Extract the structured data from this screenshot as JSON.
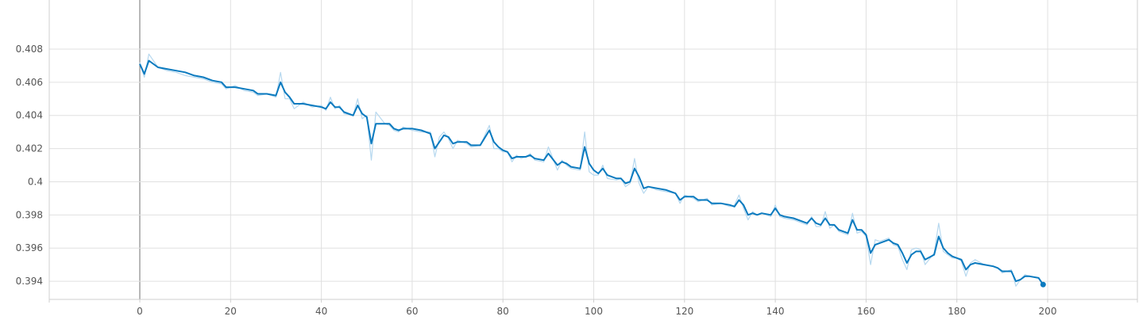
{
  "chart_data": {
    "type": "line",
    "title": "",
    "xlabel": "",
    "ylabel": "",
    "xlim": [
      -20,
      220
    ],
    "ylim": [
      0.3922,
      0.4098
    ],
    "x_ticks": [
      0,
      20,
      40,
      60,
      80,
      100,
      120,
      140,
      160,
      180,
      200
    ],
    "x_tick_labels": [
      "0",
      "20",
      "40",
      "60",
      "80",
      "100",
      "120",
      "140",
      "160",
      "180",
      "200"
    ],
    "y_ticks": [
      0.394,
      0.396,
      0.398,
      0.4,
      0.402,
      0.404,
      0.406,
      0.408
    ],
    "y_tick_labels": [
      "0.394",
      "0.396",
      "0.398",
      "0.4",
      "0.402",
      "0.404",
      "0.406",
      "0.408"
    ],
    "grid": true,
    "colors": {
      "smoothed": "#0a7abf",
      "raw": "#b6d8ef",
      "grid": "#e0e0e0"
    },
    "series": [
      {
        "role": "smoothed",
        "points": [
          [
            0,
            0.4071
          ],
          [
            1,
            0.4065
          ],
          [
            2,
            0.4073
          ],
          [
            4,
            0.4069
          ],
          [
            6,
            0.4068
          ],
          [
            8,
            0.4067
          ],
          [
            10,
            0.4066
          ],
          [
            12,
            0.4064
          ],
          [
            14,
            0.4063
          ],
          [
            16,
            0.4061
          ],
          [
            18,
            0.406
          ],
          [
            19,
            0.4057
          ],
          [
            21,
            0.4057
          ],
          [
            23,
            0.4056
          ],
          [
            25,
            0.4055
          ],
          [
            26,
            0.4053
          ],
          [
            28,
            0.4053
          ],
          [
            30,
            0.4052
          ],
          [
            31,
            0.406
          ],
          [
            32,
            0.4054
          ],
          [
            33,
            0.4051
          ],
          [
            34,
            0.4047
          ],
          [
            36,
            0.4047
          ],
          [
            38,
            0.4046
          ],
          [
            40,
            0.4045
          ],
          [
            41,
            0.4044
          ],
          [
            42,
            0.4048
          ],
          [
            43,
            0.4045
          ],
          [
            44,
            0.4045
          ],
          [
            45,
            0.4042
          ],
          [
            47,
            0.404
          ],
          [
            48,
            0.4046
          ],
          [
            49,
            0.4041
          ],
          [
            50,
            0.4039
          ],
          [
            51,
            0.4023
          ],
          [
            52,
            0.4035
          ],
          [
            54,
            0.4035
          ],
          [
            55,
            0.4035
          ],
          [
            56,
            0.4032
          ],
          [
            57,
            0.4031
          ],
          [
            58,
            0.4032
          ],
          [
            60,
            0.4032
          ],
          [
            62,
            0.4031
          ],
          [
            64,
            0.4029
          ],
          [
            65,
            0.402
          ],
          [
            66,
            0.4024
          ],
          [
            67,
            0.4028
          ],
          [
            68,
            0.4027
          ],
          [
            69,
            0.4023
          ],
          [
            70,
            0.4024
          ],
          [
            72,
            0.4024
          ],
          [
            73,
            0.4022
          ],
          [
            75,
            0.4022
          ],
          [
            77,
            0.4031
          ],
          [
            78,
            0.4024
          ],
          [
            79,
            0.4021
          ],
          [
            80,
            0.4019
          ],
          [
            81,
            0.4018
          ],
          [
            82,
            0.4014
          ],
          [
            83,
            0.4015
          ],
          [
            84,
            0.4015
          ],
          [
            85,
            0.4015
          ],
          [
            86,
            0.4016
          ],
          [
            87,
            0.4014
          ],
          [
            89,
            0.4013
          ],
          [
            90,
            0.4017
          ],
          [
            92,
            0.401
          ],
          [
            93,
            0.4012
          ],
          [
            94,
            0.4011
          ],
          [
            95,
            0.4009
          ],
          [
            97,
            0.4008
          ],
          [
            98,
            0.4021
          ],
          [
            99,
            0.4011
          ],
          [
            100,
            0.4007
          ],
          [
            101,
            0.4005
          ],
          [
            102,
            0.4008
          ],
          [
            103,
            0.4004
          ],
          [
            105,
            0.4002
          ],
          [
            106,
            0.4002
          ],
          [
            107,
            0.3999
          ],
          [
            108,
            0.4
          ],
          [
            109,
            0.4008
          ],
          [
            110,
            0.4003
          ],
          [
            111,
            0.3996
          ],
          [
            112,
            0.3997
          ],
          [
            114,
            0.3996
          ],
          [
            116,
            0.3995
          ],
          [
            118,
            0.3993
          ],
          [
            119,
            0.3989
          ],
          [
            120,
            0.3991
          ],
          [
            122,
            0.3991
          ],
          [
            123,
            0.3989
          ],
          [
            125,
            0.3989
          ],
          [
            126,
            0.3987
          ],
          [
            128,
            0.3987
          ],
          [
            130,
            0.3986
          ],
          [
            131,
            0.3985
          ],
          [
            132,
            0.3989
          ],
          [
            133,
            0.3986
          ],
          [
            134,
            0.398
          ],
          [
            135,
            0.3981
          ],
          [
            136,
            0.398
          ],
          [
            137,
            0.3981
          ],
          [
            139,
            0.398
          ],
          [
            140,
            0.3984
          ],
          [
            141,
            0.398
          ],
          [
            142,
            0.3979
          ],
          [
            144,
            0.3978
          ],
          [
            146,
            0.3976
          ],
          [
            147,
            0.3975
          ],
          [
            148,
            0.3978
          ],
          [
            149,
            0.3975
          ],
          [
            150,
            0.3974
          ],
          [
            151,
            0.3978
          ],
          [
            152,
            0.3974
          ],
          [
            153,
            0.3974
          ],
          [
            154,
            0.3971
          ],
          [
            156,
            0.3969
          ],
          [
            157,
            0.3977
          ],
          [
            158,
            0.3971
          ],
          [
            159,
            0.3971
          ],
          [
            160,
            0.3968
          ],
          [
            161,
            0.3957
          ],
          [
            162,
            0.3962
          ],
          [
            163,
            0.3963
          ],
          [
            164,
            0.3964
          ],
          [
            165,
            0.3965
          ],
          [
            166,
            0.3963
          ],
          [
            167,
            0.3962
          ],
          [
            168,
            0.3957
          ],
          [
            169,
            0.3951
          ],
          [
            170,
            0.3956
          ],
          [
            171,
            0.3958
          ],
          [
            172,
            0.3958
          ],
          [
            173,
            0.3953
          ],
          [
            175,
            0.3956
          ],
          [
            176,
            0.3967
          ],
          [
            177,
            0.396
          ],
          [
            178,
            0.3957
          ],
          [
            179,
            0.3955
          ],
          [
            180,
            0.3954
          ],
          [
            181,
            0.3953
          ],
          [
            182,
            0.3947
          ],
          [
            183,
            0.395
          ],
          [
            184,
            0.3951
          ],
          [
            186,
            0.395
          ],
          [
            188,
            0.3949
          ],
          [
            189,
            0.3948
          ],
          [
            190,
            0.3946
          ],
          [
            192,
            0.3946
          ],
          [
            193,
            0.394
          ],
          [
            194,
            0.3941
          ],
          [
            195,
            0.3943
          ],
          [
            196,
            0.3943
          ],
          [
            198,
            0.3942
          ],
          [
            199,
            0.3938
          ]
        ]
      },
      {
        "role": "raw",
        "points": [
          [
            0,
            0.4072
          ],
          [
            1,
            0.4063
          ],
          [
            2,
            0.4077
          ],
          [
            4,
            0.4069
          ],
          [
            6,
            0.4067
          ],
          [
            8,
            0.4066
          ],
          [
            10,
            0.4064
          ],
          [
            12,
            0.4063
          ],
          [
            14,
            0.4062
          ],
          [
            16,
            0.406
          ],
          [
            18,
            0.4059
          ],
          [
            19,
            0.4056
          ],
          [
            21,
            0.4058
          ],
          [
            23,
            0.4055
          ],
          [
            25,
            0.4054
          ],
          [
            26,
            0.4052
          ],
          [
            28,
            0.4053
          ],
          [
            30,
            0.4051
          ],
          [
            31,
            0.4066
          ],
          [
            32,
            0.405
          ],
          [
            33,
            0.405
          ],
          [
            34,
            0.4044
          ],
          [
            36,
            0.4048
          ],
          [
            38,
            0.4045
          ],
          [
            40,
            0.4046
          ],
          [
            41,
            0.4043
          ],
          [
            42,
            0.4051
          ],
          [
            43,
            0.4044
          ],
          [
            44,
            0.4046
          ],
          [
            45,
            0.4041
          ],
          [
            47,
            0.404
          ],
          [
            48,
            0.405
          ],
          [
            49,
            0.4038
          ],
          [
            50,
            0.404
          ],
          [
            51,
            0.4013
          ],
          [
            52,
            0.4042
          ],
          [
            54,
            0.4035
          ],
          [
            55,
            0.4034
          ],
          [
            56,
            0.4031
          ],
          [
            57,
            0.403
          ],
          [
            58,
            0.4033
          ],
          [
            60,
            0.4031
          ],
          [
            62,
            0.403
          ],
          [
            64,
            0.403
          ],
          [
            65,
            0.4015
          ],
          [
            66,
            0.4027
          ],
          [
            67,
            0.403
          ],
          [
            68,
            0.4026
          ],
          [
            69,
            0.402
          ],
          [
            70,
            0.4025
          ],
          [
            72,
            0.4023
          ],
          [
            73,
            0.4021
          ],
          [
            75,
            0.4022
          ],
          [
            77,
            0.4034
          ],
          [
            78,
            0.402
          ],
          [
            79,
            0.402
          ],
          [
            80,
            0.4018
          ],
          [
            81,
            0.4018
          ],
          [
            82,
            0.4012
          ],
          [
            83,
            0.4016
          ],
          [
            84,
            0.4014
          ],
          [
            85,
            0.4015
          ],
          [
            86,
            0.4017
          ],
          [
            87,
            0.4013
          ],
          [
            89,
            0.4012
          ],
          [
            90,
            0.4021
          ],
          [
            92,
            0.4007
          ],
          [
            93,
            0.4013
          ],
          [
            94,
            0.401
          ],
          [
            95,
            0.4008
          ],
          [
            97,
            0.4007
          ],
          [
            98,
            0.403
          ],
          [
            99,
            0.4006
          ],
          [
            100,
            0.4004
          ],
          [
            101,
            0.4004
          ],
          [
            102,
            0.401
          ],
          [
            103,
            0.4002
          ],
          [
            105,
            0.4001
          ],
          [
            106,
            0.4002
          ],
          [
            107,
            0.3997
          ],
          [
            108,
            0.3999
          ],
          [
            109,
            0.4014
          ],
          [
            110,
            0.3999
          ],
          [
            111,
            0.3993
          ],
          [
            112,
            0.3997
          ],
          [
            114,
            0.3995
          ],
          [
            116,
            0.3994
          ],
          [
            118,
            0.3993
          ],
          [
            119,
            0.3987
          ],
          [
            120,
            0.3992
          ],
          [
            122,
            0.399
          ],
          [
            123,
            0.3988
          ],
          [
            125,
            0.399
          ],
          [
            126,
            0.3986
          ],
          [
            128,
            0.3987
          ],
          [
            130,
            0.3985
          ],
          [
            131,
            0.3986
          ],
          [
            132,
            0.3992
          ],
          [
            133,
            0.3984
          ],
          [
            134,
            0.3977
          ],
          [
            135,
            0.3982
          ],
          [
            136,
            0.398
          ],
          [
            137,
            0.3981
          ],
          [
            139,
            0.3979
          ],
          [
            140,
            0.3986
          ],
          [
            141,
            0.3979
          ],
          [
            142,
            0.3978
          ],
          [
            144,
            0.3977
          ],
          [
            146,
            0.3975
          ],
          [
            147,
            0.3974
          ],
          [
            148,
            0.3979
          ],
          [
            149,
            0.3973
          ],
          [
            150,
            0.3973
          ],
          [
            151,
            0.3982
          ],
          [
            152,
            0.3972
          ],
          [
            153,
            0.3974
          ],
          [
            154,
            0.397
          ],
          [
            156,
            0.3968
          ],
          [
            157,
            0.3981
          ],
          [
            158,
            0.3969
          ],
          [
            159,
            0.397
          ],
          [
            160,
            0.3967
          ],
          [
            161,
            0.395
          ],
          [
            162,
            0.3965
          ],
          [
            163,
            0.3964
          ],
          [
            164,
            0.3965
          ],
          [
            165,
            0.3966
          ],
          [
            166,
            0.3962
          ],
          [
            167,
            0.3961
          ],
          [
            168,
            0.3953
          ],
          [
            169,
            0.3947
          ],
          [
            170,
            0.3959
          ],
          [
            171,
            0.396
          ],
          [
            172,
            0.3959
          ],
          [
            173,
            0.395
          ],
          [
            175,
            0.3957
          ],
          [
            176,
            0.3975
          ],
          [
            177,
            0.3958
          ],
          [
            178,
            0.3956
          ],
          [
            179,
            0.3954
          ],
          [
            180,
            0.3954
          ],
          [
            181,
            0.3952
          ],
          [
            182,
            0.3943
          ],
          [
            183,
            0.3951
          ],
          [
            184,
            0.3953
          ],
          [
            186,
            0.395
          ],
          [
            188,
            0.3949
          ],
          [
            189,
            0.3948
          ],
          [
            190,
            0.3945
          ],
          [
            192,
            0.3947
          ],
          [
            193,
            0.3937
          ],
          [
            194,
            0.3941
          ],
          [
            195,
            0.3944
          ],
          [
            196,
            0.3943
          ],
          [
            198,
            0.3942
          ],
          [
            199,
            0.3938
          ]
        ]
      }
    ],
    "last_point": [
      199,
      0.3938
    ]
  }
}
